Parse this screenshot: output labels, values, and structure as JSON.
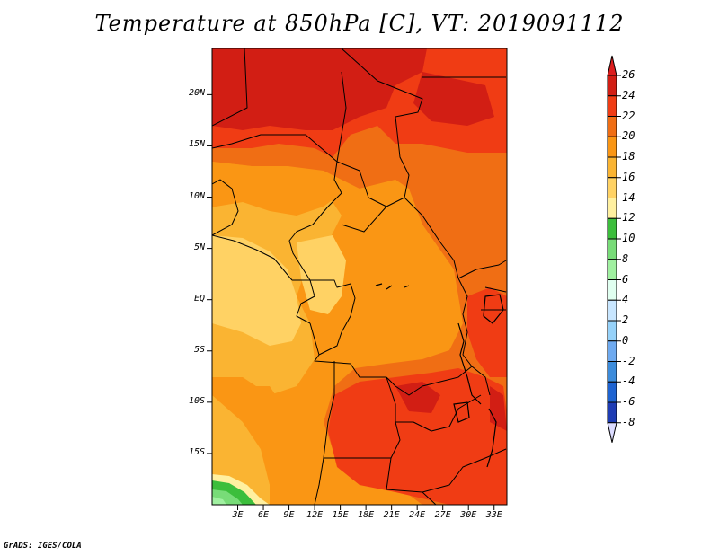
{
  "title": "Temperature at 850hPa [C], VT: 2019091112",
  "credit": "GrADS: IGES/COLA",
  "map": {
    "lat_ticks": [
      "20N",
      "15N",
      "10N",
      "5N",
      "EQ",
      "5S",
      "10S",
      "15S"
    ],
    "lon_ticks": [
      "3E",
      "6E",
      "9E",
      "12E",
      "15E",
      "18E",
      "21E",
      "24E",
      "27E",
      "30E",
      "33E"
    ]
  },
  "colorbar": {
    "labels": [
      "26",
      "24",
      "22",
      "20",
      "18",
      "16",
      "14",
      "12",
      "10",
      "8",
      "6",
      "4",
      "2",
      "0",
      "-2",
      "-4",
      "-6",
      "-8"
    ],
    "over_color": "#dc1e1e",
    "under_color": "#dcdcff",
    "colors": [
      "#d21e14",
      "#f03c14",
      "#f06e14",
      "#fa9614",
      "#fab432",
      "#ffd264",
      "#fff0a0",
      "#3cbe3c",
      "#78dc78",
      "#a0f0a0",
      "#e0fff0",
      "#c8e6ff",
      "#96d2fa",
      "#6eaaf0",
      "#3c8cdc",
      "#1e64d2",
      "#1e3cb4",
      "#14148c",
      "#000064"
    ]
  },
  "field_colors": {
    "t26": "#d21e14",
    "t24": "#f03c14",
    "t22": "#f06e14",
    "t20": "#fa9614",
    "t18": "#fab432",
    "t16": "#ffd264",
    "t14": "#fff0a0",
    "t12": "#3cbe3c",
    "t10": "#78dc78",
    "t8": "#a0f0a0"
  }
}
